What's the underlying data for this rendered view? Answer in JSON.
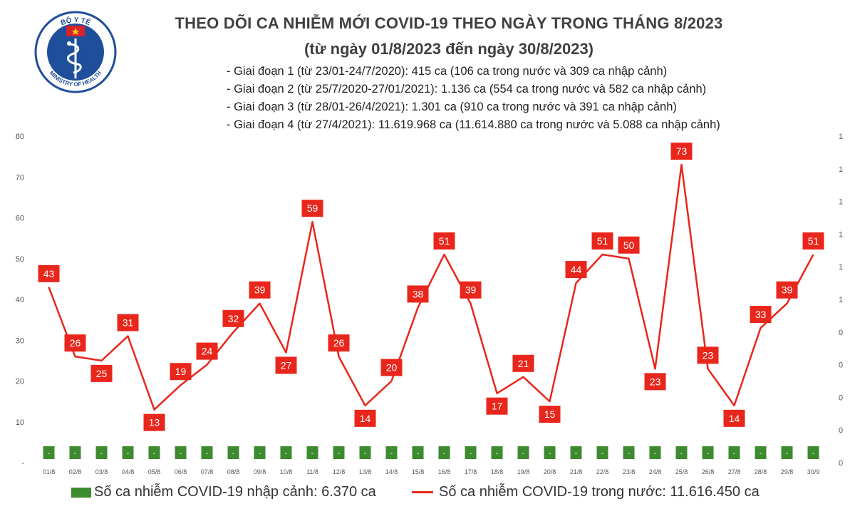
{
  "header": {
    "logo_top_text": "BỘ Y TẾ",
    "logo_bottom_text": "MINISTRY OF HEALTH",
    "title": "THEO DÕI CA NHIỄM MỚI COVID-19 THEO NGÀY TRONG THÁNG 8/2023",
    "subtitle": "(từ ngày 01/8/2023 đến ngày 30/8/2023)",
    "notes": [
      "- Giai đoạn 1 (từ 23/01-24/7/2020): 415 ca (106 ca trong nước và 309 ca nhập cảnh)",
      "- Giai đoạn 2 (từ 25/7/2020-27/01/2021): 1.136 ca (554 ca trong nước và 582 ca nhập cảnh)",
      "- Giai đoạn 3 (từ 28/01-26/4/2021): 1.301 ca (910 ca trong nước và 391 ca nhập cảnh)",
      "- Giai đoạn 4 (từ 27/4/2021): 11.619.968 ca (11.614.880 ca trong nước và 5.088 ca nhập cảnh)"
    ]
  },
  "colors": {
    "line": "#e9261b",
    "bar": "#3d8a2f",
    "label_bg": "#e9261b",
    "label_text": "#ffffff"
  },
  "chart_data": {
    "type": "line",
    "title": "THEO DÕI CA NHIỄM MỚI COVID-19 THEO NGÀY TRONG THÁNG 8/2023",
    "categories": [
      "01/8",
      "02/8",
      "03/8",
      "04/8",
      "05/8",
      "06/8",
      "07/8",
      "08/8",
      "09/8",
      "10/8",
      "11/8",
      "12/8",
      "13/8",
      "14/8",
      "15/8",
      "16/8",
      "17/8",
      "18/8",
      "19/8",
      "20/8",
      "21/8",
      "22/8",
      "23/8",
      "24/8",
      "25/8",
      "26/8",
      "27/8",
      "28/8",
      "29/8",
      "30/9"
    ],
    "series": [
      {
        "name": "Số ca nhiễm COVID-19 trong nước: 11.616.450 ca",
        "type": "line",
        "values": [
          43,
          26,
          25,
          31,
          13,
          19,
          24,
          32,
          39,
          27,
          59,
          26,
          14,
          20,
          38,
          51,
          39,
          17,
          21,
          15,
          44,
          51,
          50,
          23,
          73,
          23,
          14,
          33,
          39,
          51
        ]
      },
      {
        "name": "Số ca nhiễm COVID-19 nhập cảnh: 6.370 ca",
        "type": "bar",
        "values": [
          0,
          0,
          0,
          0,
          0,
          0,
          0,
          0,
          0,
          0,
          0,
          0,
          0,
          0,
          0,
          0,
          0,
          0,
          0,
          0,
          0,
          0,
          0,
          0,
          0,
          0,
          0,
          0,
          0,
          0
        ],
        "label": "-"
      }
    ],
    "y_left_ticks": [
      "-",
      "10",
      "20",
      "30",
      "40",
      "50",
      "60",
      "70",
      "80"
    ],
    "y_right_ticks": [
      "0",
      "0",
      "0",
      "0",
      "0",
      "1",
      "1",
      "1",
      "1",
      "1",
      "1"
    ],
    "ylim": [
      0,
      80
    ]
  },
  "legend": {
    "import_label": "Số ca nhiễm COVID-19 nhập cảnh: 6.370 ca",
    "domestic_label": "Số ca nhiễm COVID-19 trong nước: 11.616.450 ca"
  }
}
